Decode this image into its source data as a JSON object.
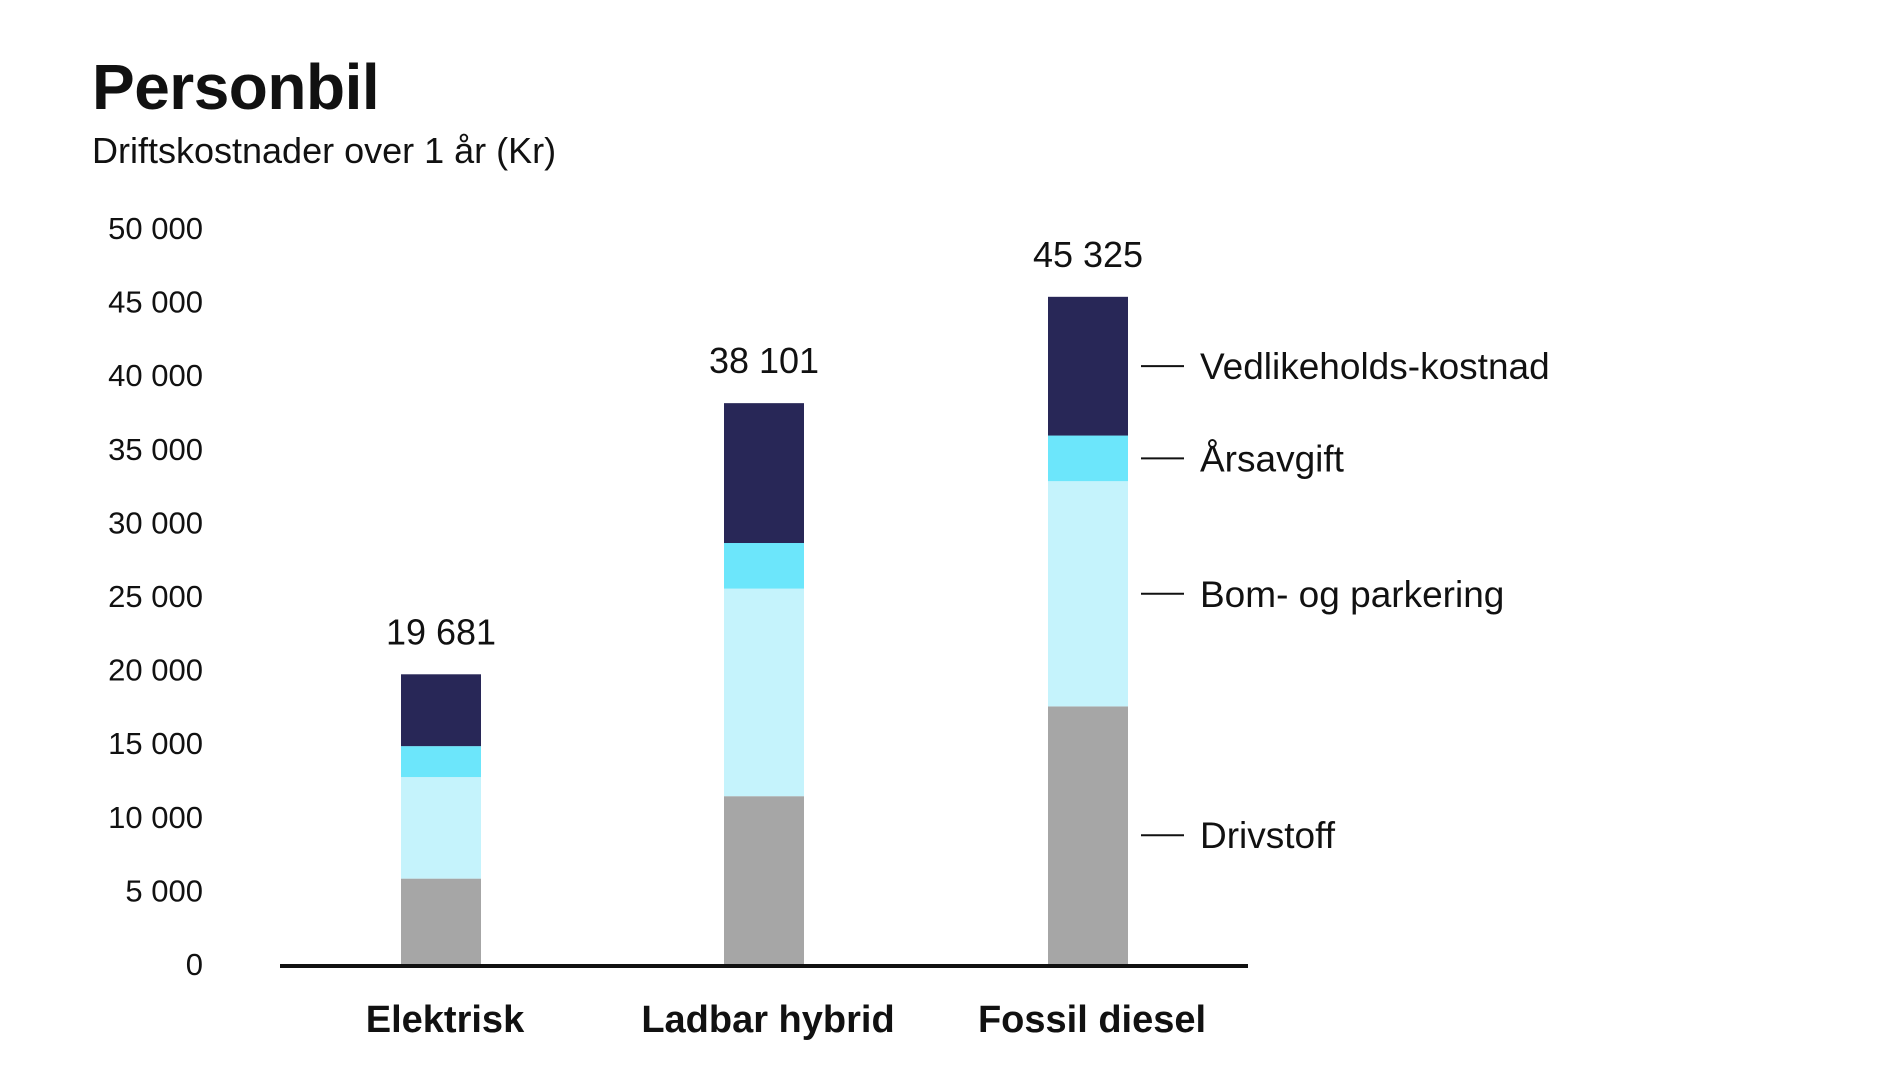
{
  "title": "Personbil",
  "subtitle": "Driftskostnader over 1 år (Kr)",
  "chart_data": {
    "type": "bar",
    "stacked": true,
    "categories": [
      "Elektrisk",
      "Ladbar hybrid",
      "Fossil diesel"
    ],
    "ylim": [
      0,
      50000
    ],
    "yticks": [
      0,
      5000,
      10000,
      15000,
      20000,
      25000,
      30000,
      35000,
      40000,
      45000,
      50000
    ],
    "ytick_labels": [
      "0",
      "5 000",
      "10 000",
      "15 000",
      "20 000",
      "25 000",
      "30 000",
      "35 000",
      "40 000",
      "45 000",
      "50 000"
    ],
    "grid": false,
    "legend_placement": "right of last bar",
    "series": [
      {
        "name": "Drivstoff",
        "color": "#a6a6a6",
        "values": [
          5800,
          11400,
          17500
        ]
      },
      {
        "name": "Bom- og parkering",
        "color": "#c5f3fc",
        "values": [
          6900,
          14100,
          15300
        ]
      },
      {
        "name": "Årsavgift",
        "color": "#6ce6fb",
        "values": [
          2100,
          3100,
          3100
        ]
      },
      {
        "name": "Vedlikeholds-kostnad",
        "color": "#282757",
        "values": [
          4881,
          9501,
          9425
        ]
      }
    ],
    "totals": [
      19681,
      38101,
      45325
    ],
    "total_labels": [
      "19 681",
      "38 101",
      "45 325"
    ]
  }
}
